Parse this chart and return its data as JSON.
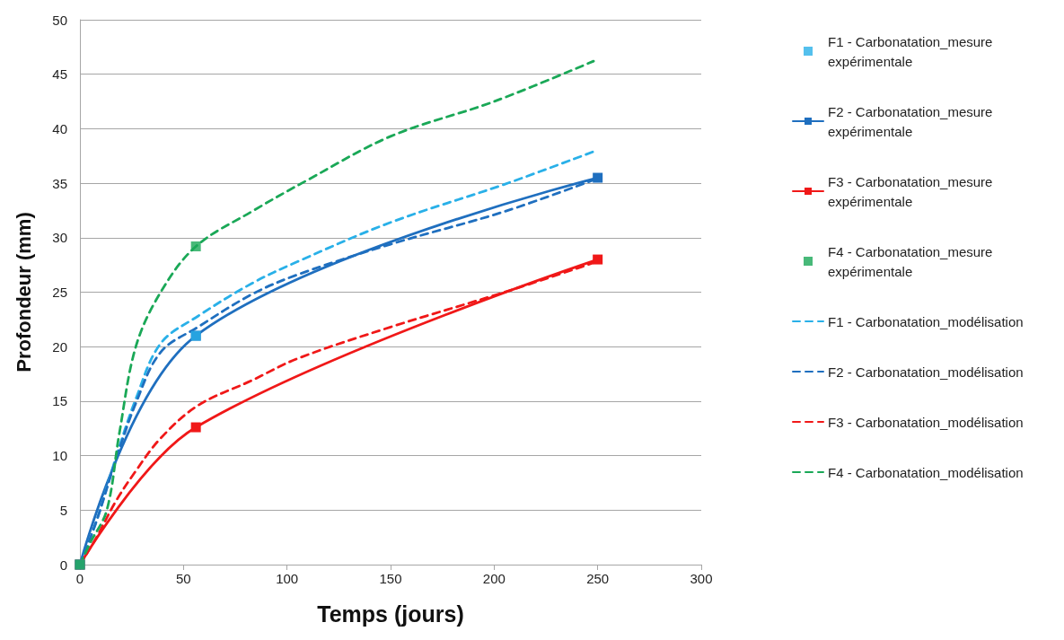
{
  "chart_data": {
    "type": "line",
    "xlabel": "Temps (jours)",
    "ylabel": "Profondeur (mm)",
    "xlim": [
      0,
      300
    ],
    "xticks": [
      0,
      50,
      100,
      150,
      200,
      250,
      300
    ],
    "ylim": [
      0,
      50
    ],
    "yticks": [
      0,
      5,
      10,
      15,
      20,
      25,
      30,
      35,
      40,
      45,
      50
    ],
    "grid": "y",
    "legend": "right",
    "series": [
      {
        "name": "F1 - Carbonatation_mesure expérimentale",
        "type": "scatter",
        "marker": "square",
        "color": "#29b0e8",
        "x": [
          0,
          56
        ],
        "values": [
          0,
          21
        ]
      },
      {
        "name": "F2 - Carbonatation_mesure expérimentale",
        "marker": "square",
        "line_style": "solid",
        "color": "#1f6fbf",
        "x": [
          0,
          56,
          250
        ],
        "values": [
          0,
          21,
          35.5
        ]
      },
      {
        "name": "F3 - Carbonatation_mesure expérimentale",
        "marker": "square",
        "line_style": "solid",
        "color": "#f01818",
        "x": [
          0,
          56,
          250
        ],
        "values": [
          0,
          12.6,
          28
        ]
      },
      {
        "name": "F4 - Carbonatation_mesure expérimentale",
        "type": "scatter",
        "marker": "square",
        "color": "#1aa857",
        "x": [
          0,
          56
        ],
        "values": [
          0,
          29.2
        ]
      },
      {
        "name": "F1 - Carbonatation_modélisation",
        "marker": "none",
        "line_style": "dashed",
        "color": "#29b0e8",
        "x": [
          0,
          8,
          17,
          27,
          39,
          57,
          83,
          105,
          150,
          205,
          248
        ],
        "values": [
          0,
          4,
          9.6,
          15.2,
          20.3,
          22.8,
          25.8,
          27.8,
          31.4,
          34.9,
          37.9
        ]
      },
      {
        "name": "F2 - Carbonatation_modélisation",
        "marker": "none",
        "line_style": "dashed",
        "color": "#1f6fbf",
        "x": [
          0,
          8,
          17,
          27,
          39,
          57,
          83,
          105,
          150,
          205,
          248
        ],
        "values": [
          0,
          4,
          9.4,
          14.8,
          19.5,
          21.8,
          24.8,
          26.6,
          29.4,
          32.4,
          35.3
        ]
      },
      {
        "name": "F3 - Carbonatation_modélisation",
        "marker": "none",
        "line_style": "dashed",
        "color": "#f01818",
        "x": [
          0,
          8,
          17,
          27,
          39,
          57,
          83,
          105,
          150,
          205,
          248
        ],
        "values": [
          0,
          2.5,
          5.7,
          8.6,
          11.6,
          14.6,
          16.9,
          18.9,
          21.8,
          25,
          27.7
        ]
      },
      {
        "name": "F4 - Carbonatation_modélisation",
        "marker": "none",
        "line_style": "dashed",
        "color": "#1aa857",
        "x": [
          0,
          5,
          13,
          19,
          27,
          39,
          56,
          83,
          110,
          150,
          200,
          248
        ],
        "values": [
          0,
          2,
          5,
          12,
          20,
          25,
          29.2,
          32.4,
          35.3,
          39.3,
          42.5,
          46.2
        ]
      }
    ]
  }
}
